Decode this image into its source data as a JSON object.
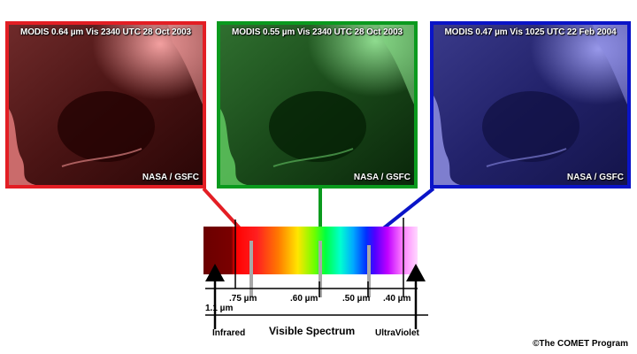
{
  "panels": [
    {
      "label": "MODIS 0.64 µm Vis   2340 UTC   28 Oct 2003",
      "credit": "NASA / GSFC",
      "border": "#e31e24"
    },
    {
      "label": "MODIS 0.55 µm Vis   2340 UTC   28 Oct 2003",
      "credit": "NASA / GSFC",
      "border": "#0a9a1e"
    },
    {
      "label": "MODIS 0.47 µm Vis   1025 UTC   22 Feb 2004",
      "credit": "NASA / GSFC",
      "border": "#0a14c8"
    }
  ],
  "spectrum": {
    "ticks": [
      ".75 µm",
      ".60 µm",
      ".50 µm",
      ".40 µm"
    ],
    "left_label": "1.1 µm",
    "infrared": "Infrared",
    "visible": "Visible Spectrum",
    "ultraviolet": "UltraViolet"
  },
  "copyright": "©The COMET Program"
}
